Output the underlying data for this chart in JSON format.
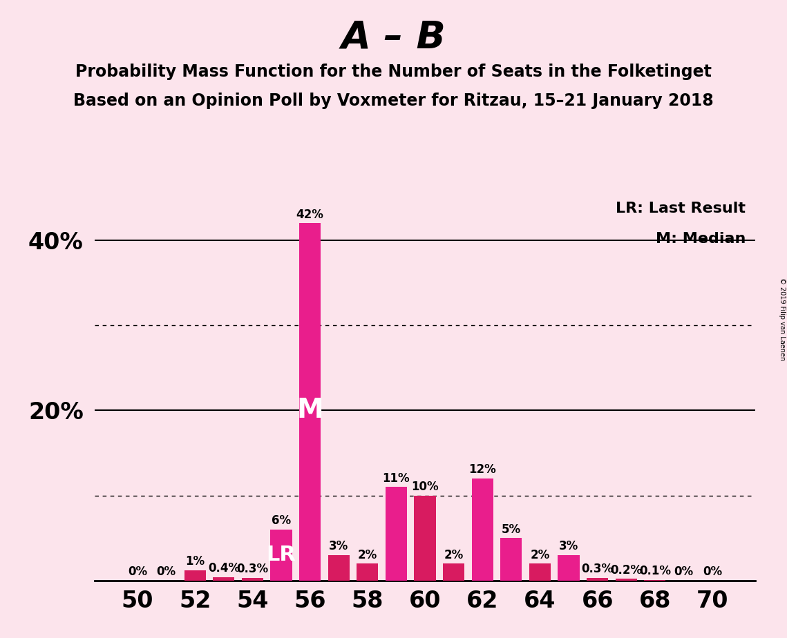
{
  "title_main": "A – B",
  "subtitle1": "Probability Mass Function for the Number of Seats in the Folketinget",
  "subtitle2": "Based on an Opinion Poll by Voxmeter for Ritzau, 15–21 January 2018",
  "copyright": "© 2019 Filip van Laenen",
  "legend_lr": "LR: Last Result",
  "legend_m": "M: Median",
  "seats": [
    50,
    51,
    52,
    53,
    54,
    55,
    56,
    57,
    58,
    59,
    60,
    61,
    62,
    63,
    64,
    65,
    66,
    67,
    68,
    69,
    70
  ],
  "values": [
    0,
    0,
    1.2,
    0.4,
    0.3,
    6,
    42,
    3,
    2,
    11,
    10,
    2,
    12,
    5,
    2,
    3,
    0.3,
    0.2,
    0.1,
    0,
    0
  ],
  "magenta_seats": [
    55,
    56,
    59,
    62,
    63,
    65
  ],
  "crimson_color": "#d81b60",
  "magenta_color": "#e91e8c",
  "median_seat": 56,
  "lr_seat": 55,
  "background_color": "#fce4ec",
  "bar_width": 0.75,
  "ylim_max": 45,
  "solid_lines": [
    20,
    40
  ],
  "dotted_lines": [
    10,
    30
  ],
  "xlabel_fontsize": 24,
  "ylabel_fontsize": 24,
  "title_fontsize": 40,
  "subtitle_fontsize": 17,
  "label_fontsize": 12,
  "legend_fontsize": 16,
  "m_fontsize": 28,
  "lr_fontsize": 22
}
